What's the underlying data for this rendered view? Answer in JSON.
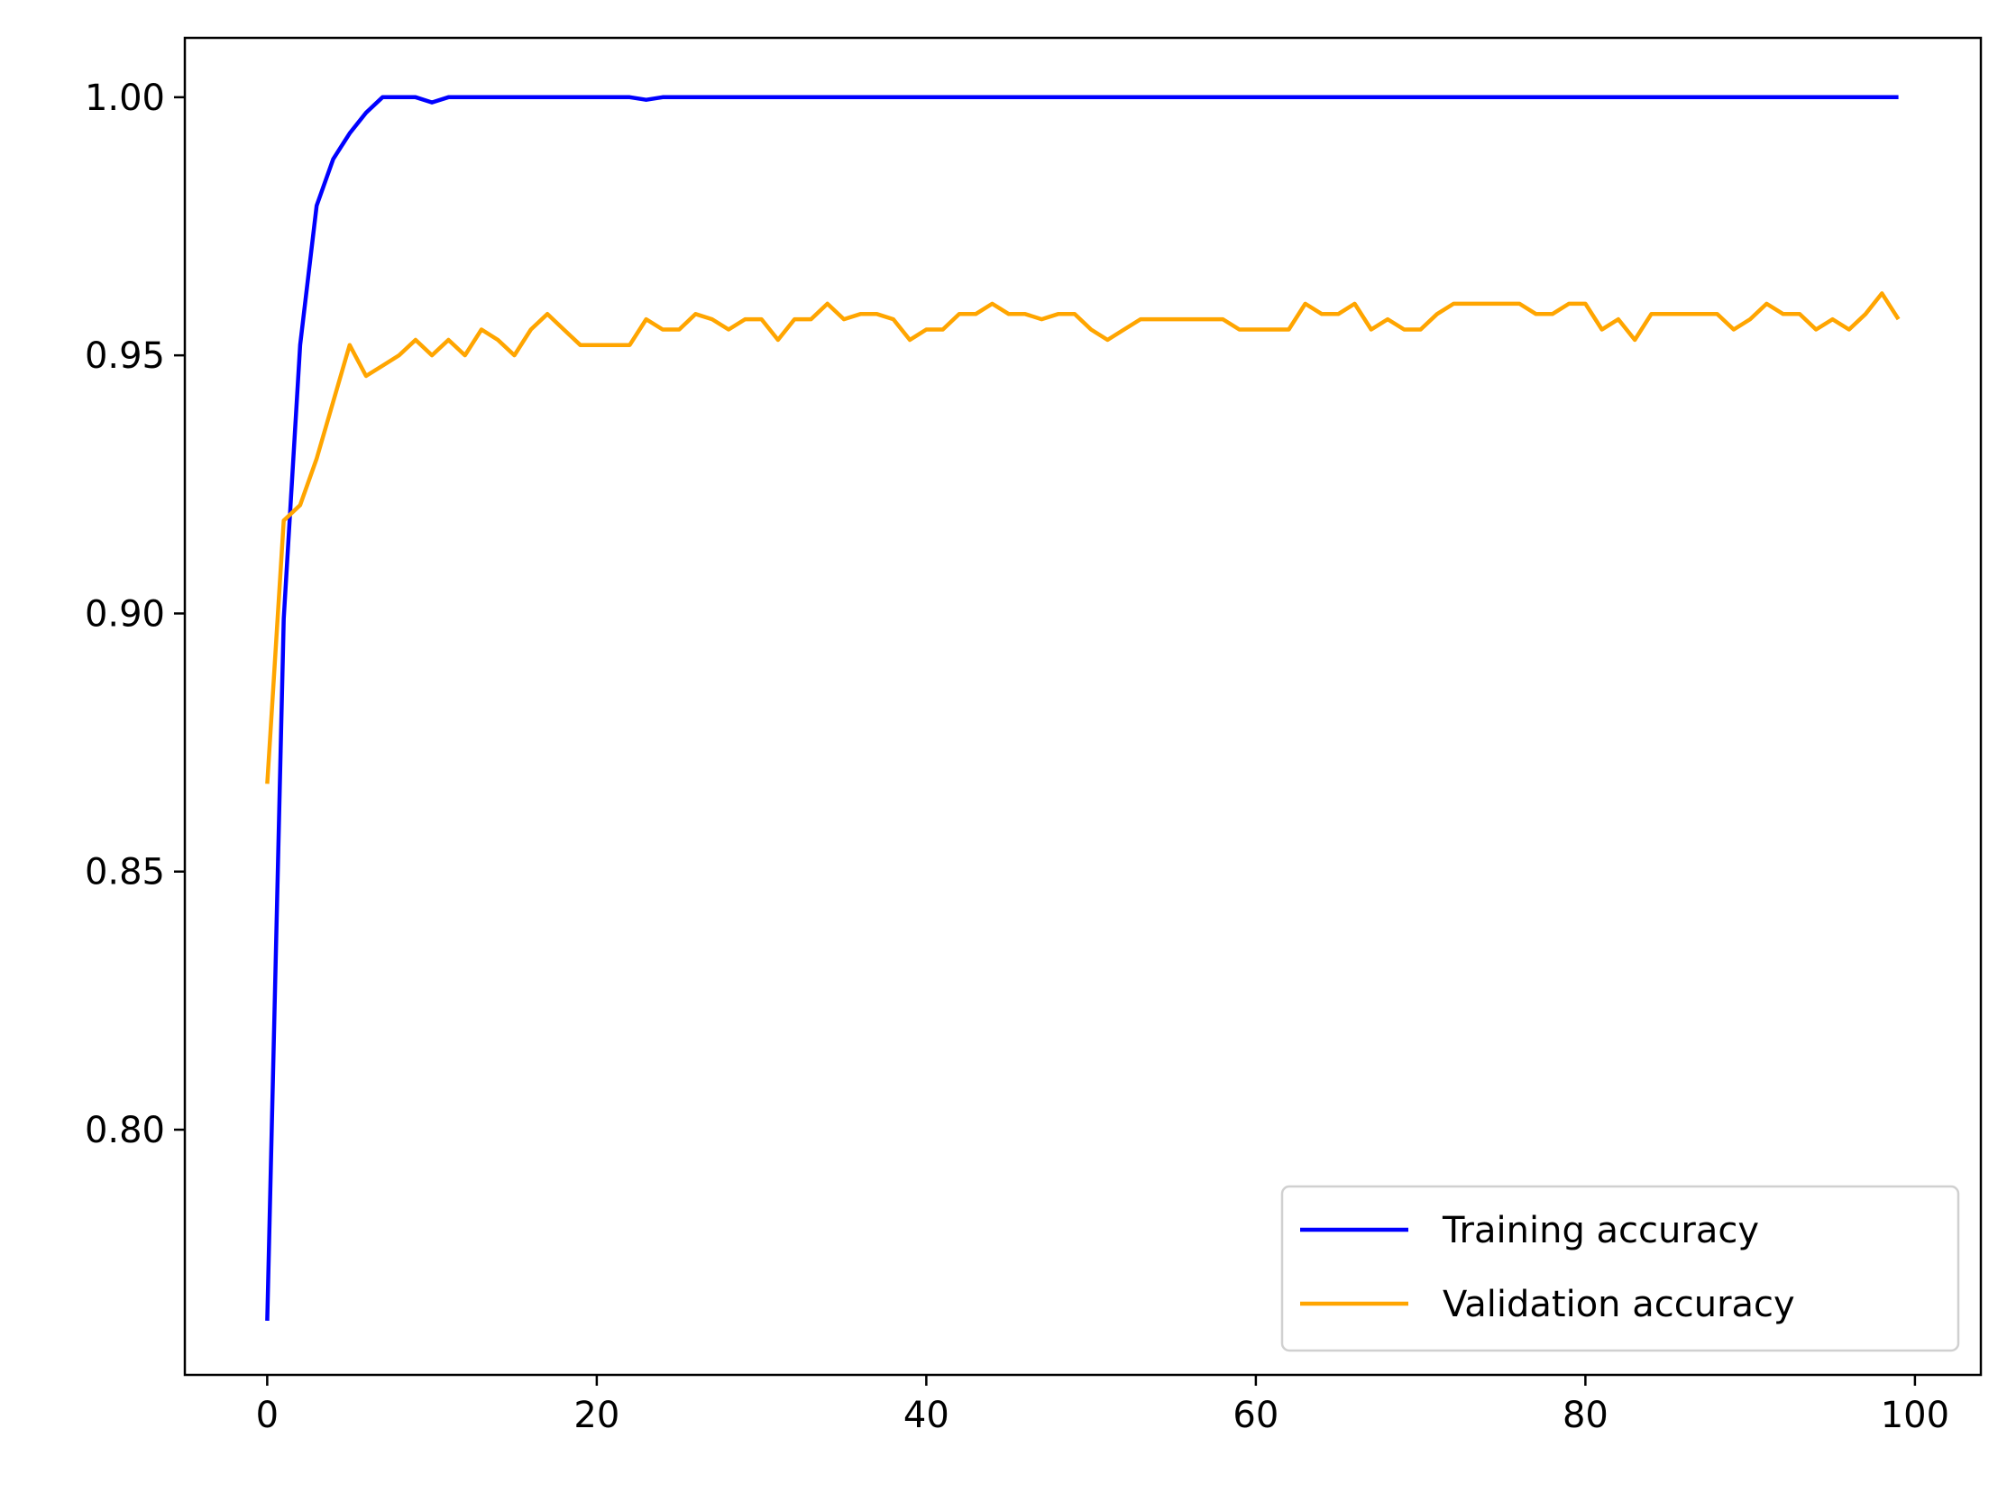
{
  "chart_data": {
    "type": "line",
    "title": "",
    "xlabel": "",
    "ylabel": "",
    "xlim": [
      -5,
      104
    ],
    "ylim": [
      0.7525,
      1.0115
    ],
    "x_ticks": [
      0,
      20,
      40,
      60,
      80,
      100
    ],
    "x_tick_labels": [
      "0",
      "20",
      "40",
      "60",
      "80",
      "100"
    ],
    "y_ticks": [
      0.8,
      0.85,
      0.9,
      0.95,
      1.0
    ],
    "y_tick_labels": [
      "0.80",
      "0.85",
      "0.90",
      "0.95",
      "1.00"
    ],
    "grid": false,
    "legend_position": "lower-right",
    "series": [
      {
        "name": "Training accuracy",
        "color": "#0000ff",
        "x": [
          0,
          1,
          2,
          3,
          4,
          5,
          6,
          7,
          8,
          9,
          10,
          11,
          12,
          13,
          14,
          15,
          16,
          17,
          18,
          19,
          20,
          21,
          22,
          23,
          24,
          25,
          26,
          27,
          28,
          29,
          30,
          31,
          32,
          33,
          34,
          35,
          36,
          37,
          38,
          39,
          40,
          41,
          42,
          43,
          44,
          45,
          46,
          47,
          48,
          49,
          50,
          51,
          52,
          53,
          54,
          55,
          56,
          57,
          58,
          59,
          60,
          61,
          62,
          63,
          64,
          65,
          66,
          67,
          68,
          69,
          70,
          71,
          72,
          73,
          74,
          75,
          76,
          77,
          78,
          79,
          80,
          81,
          82,
          83,
          84,
          85,
          86,
          87,
          88,
          89,
          90,
          91,
          92,
          93,
          94,
          95,
          96,
          97,
          98,
          99
        ],
        "values": [
          0.763,
          0.899,
          0.952,
          0.979,
          0.988,
          0.993,
          0.997,
          1.0,
          1.0,
          1.0,
          0.999,
          1.0,
          1.0,
          1.0,
          1.0,
          1.0,
          1.0,
          1.0,
          1.0,
          1.0,
          1.0,
          1.0,
          1.0,
          0.9995,
          1.0,
          1.0,
          1.0,
          1.0,
          1.0,
          1.0,
          1.0,
          1.0,
          1.0,
          1.0,
          1.0,
          1.0,
          1.0,
          1.0,
          1.0,
          1.0,
          1.0,
          1.0,
          1.0,
          1.0,
          1.0,
          1.0,
          1.0,
          1.0,
          1.0,
          1.0,
          1.0,
          1.0,
          1.0,
          1.0,
          1.0,
          1.0,
          1.0,
          1.0,
          1.0,
          1.0,
          1.0,
          1.0,
          1.0,
          1.0,
          1.0,
          1.0,
          1.0,
          1.0,
          1.0,
          1.0,
          1.0,
          1.0,
          1.0,
          1.0,
          1.0,
          1.0,
          1.0,
          1.0,
          1.0,
          1.0,
          1.0,
          1.0,
          1.0,
          1.0,
          1.0,
          1.0,
          1.0,
          1.0,
          1.0,
          1.0,
          1.0,
          1.0,
          1.0,
          1.0,
          1.0,
          1.0,
          1.0,
          1.0,
          1.0,
          1.0
        ]
      },
      {
        "name": "Validation accuracy",
        "color": "#ffa500",
        "x": [
          0,
          1,
          2,
          3,
          4,
          5,
          6,
          7,
          8,
          9,
          10,
          11,
          12,
          13,
          14,
          15,
          16,
          17,
          18,
          19,
          20,
          21,
          22,
          23,
          24,
          25,
          26,
          27,
          28,
          29,
          30,
          31,
          32,
          33,
          34,
          35,
          36,
          37,
          38,
          39,
          40,
          41,
          42,
          43,
          44,
          45,
          46,
          47,
          48,
          49,
          50,
          51,
          52,
          53,
          54,
          55,
          56,
          57,
          58,
          59,
          60,
          61,
          62,
          63,
          64,
          65,
          66,
          67,
          68,
          69,
          70,
          71,
          72,
          73,
          74,
          75,
          76,
          77,
          78,
          79,
          80,
          81,
          82,
          83,
          84,
          85,
          86,
          87,
          88,
          89,
          90,
          91,
          92,
          93,
          94,
          95,
          96,
          97,
          98,
          99
        ],
        "values": [
          0.867,
          0.918,
          0.921,
          0.93,
          0.941,
          0.952,
          0.946,
          0.948,
          0.95,
          0.953,
          0.95,
          0.953,
          0.95,
          0.955,
          0.953,
          0.95,
          0.955,
          0.958,
          0.955,
          0.952,
          0.952,
          0.952,
          0.952,
          0.957,
          0.955,
          0.955,
          0.958,
          0.957,
          0.955,
          0.957,
          0.957,
          0.953,
          0.957,
          0.957,
          0.96,
          0.957,
          0.958,
          0.958,
          0.957,
          0.953,
          0.955,
          0.955,
          0.958,
          0.958,
          0.96,
          0.958,
          0.958,
          0.957,
          0.958,
          0.958,
          0.955,
          0.953,
          0.955,
          0.957,
          0.957,
          0.957,
          0.957,
          0.957,
          0.957,
          0.955,
          0.955,
          0.955,
          0.955,
          0.96,
          0.958,
          0.958,
          0.96,
          0.955,
          0.957,
          0.955,
          0.955,
          0.958,
          0.96,
          0.96,
          0.96,
          0.96,
          0.96,
          0.958,
          0.958,
          0.96,
          0.96,
          0.955,
          0.957,
          0.953,
          0.958,
          0.958,
          0.958,
          0.958,
          0.958,
          0.955,
          0.957,
          0.96,
          0.958,
          0.958,
          0.955,
          0.957,
          0.955,
          0.958,
          0.962,
          0.957
        ]
      }
    ]
  }
}
